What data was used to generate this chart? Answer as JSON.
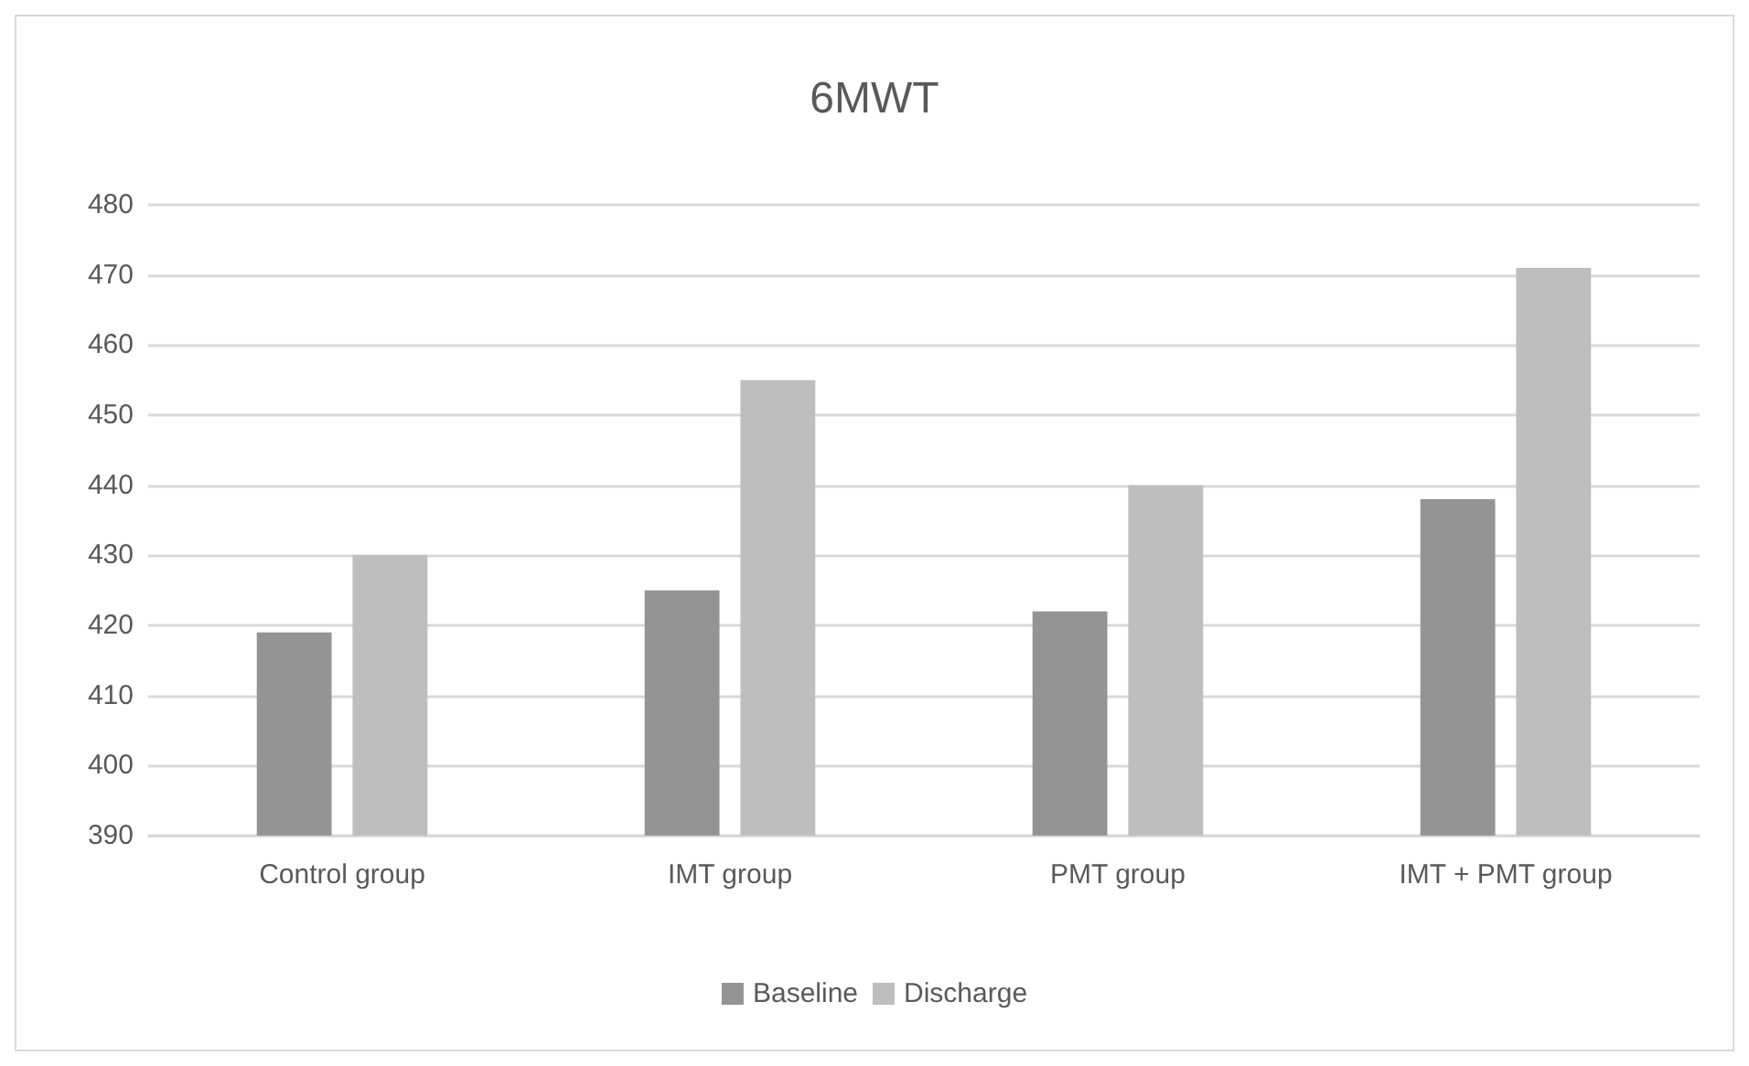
{
  "chart_data": {
    "type": "bar",
    "title": "6MWT",
    "categories": [
      "Control group",
      "IMT group",
      "PMT group",
      "IMT + PMT group"
    ],
    "series": [
      {
        "name": "Baseline",
        "color": "#949494",
        "values": [
          419,
          425,
          422,
          438
        ]
      },
      {
        "name": "Discharge",
        "color": "#bebebe",
        "values": [
          430,
          455,
          440,
          471
        ]
      }
    ],
    "ylim": [
      390,
      480
    ],
    "yticks": [
      390,
      400,
      410,
      420,
      430,
      440,
      450,
      460,
      470,
      480
    ],
    "grid": "y",
    "legend": "bottom"
  }
}
